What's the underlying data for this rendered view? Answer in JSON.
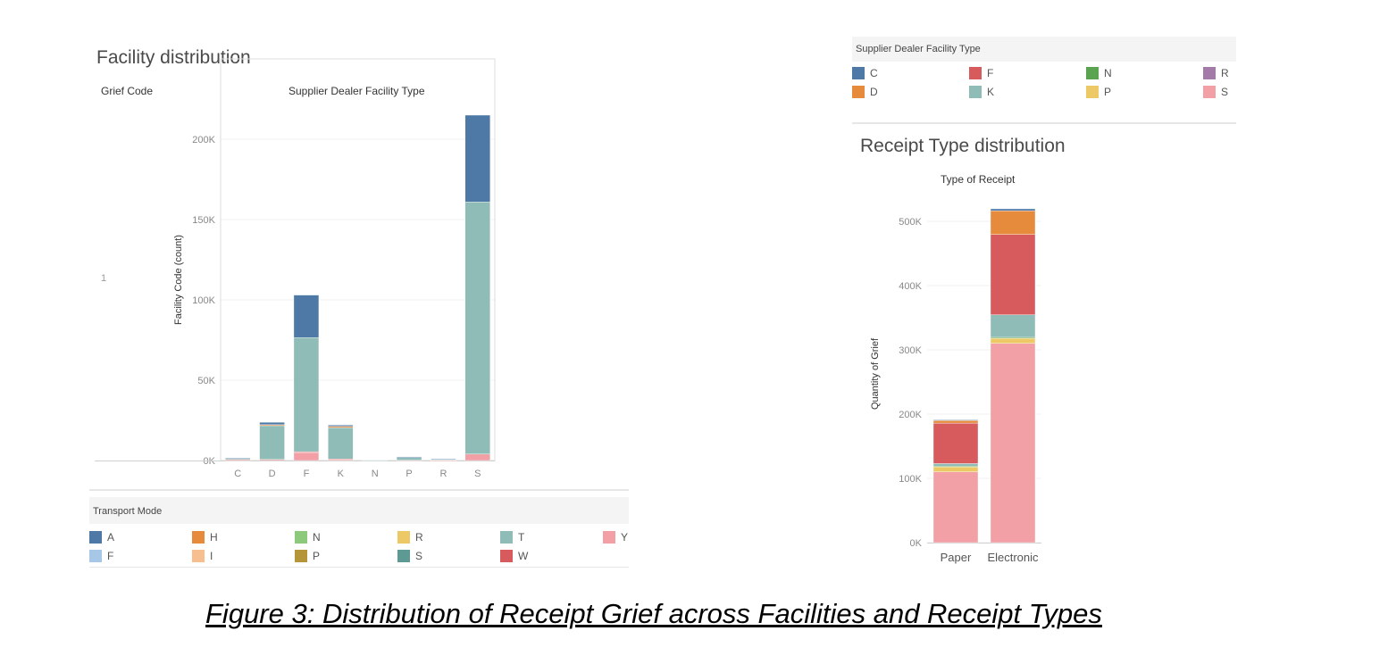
{
  "figure_caption": "Figure 3: Distribution of Receipt Grief across Facilities and Receipt Types",
  "left_panel": {
    "title": "Facility distribution",
    "row_header": "Grief Code",
    "row_value": "1",
    "column_header": "Supplier Dealer Facility Type"
  },
  "right_panel": {
    "title": "Receipt Type distribution",
    "column_header": "Type of Receipt"
  },
  "transport_legend": {
    "title": "Transport Mode",
    "items": [
      {
        "label": "A",
        "color": "#4e79a7"
      },
      {
        "label": "H",
        "color": "#e68a3c"
      },
      {
        "label": "N",
        "color": "#8cc97a"
      },
      {
        "label": "R",
        "color": "#ecc964"
      },
      {
        "label": "T",
        "color": "#8fbcb6"
      },
      {
        "label": "Y",
        "color": "#f2a0a6"
      },
      {
        "label": "F",
        "color": "#a6c8e6"
      },
      {
        "label": "I",
        "color": "#f7bf8f"
      },
      {
        "label": "P",
        "color": "#b5953a"
      },
      {
        "label": "S",
        "color": "#5e9a94"
      },
      {
        "label": "W",
        "color": "#d75a5c"
      }
    ]
  },
  "facility_legend": {
    "title": "Supplier Dealer Facility Type",
    "items": [
      {
        "label": "C",
        "color": "#4e79a7"
      },
      {
        "label": "F",
        "color": "#d75a5c"
      },
      {
        "label": "N",
        "color": "#5aa351"
      },
      {
        "label": "R",
        "color": "#a47aa8"
      },
      {
        "label": "D",
        "color": "#e68a3c"
      },
      {
        "label": "K",
        "color": "#8fbcb6"
      },
      {
        "label": "P",
        "color": "#ecc964"
      },
      {
        "label": "S",
        "color": "#f2a0a6"
      }
    ]
  },
  "chart_data": [
    {
      "type": "bar",
      "stacked": true,
      "title": "Facility distribution",
      "xlabel": "Supplier Dealer Facility Type",
      "ylabel": "Facility Code (count)",
      "categories": [
        "C",
        "D",
        "F",
        "K",
        "N",
        "P",
        "R",
        "S"
      ],
      "ylim": [
        0,
        225000
      ],
      "yticks": [
        0,
        50000,
        100000,
        150000,
        200000
      ],
      "ytick_labels": [
        "0K",
        "50K",
        "100K",
        "150K",
        "200K"
      ],
      "series": [
        {
          "name": "Y",
          "color": "#f2a0a6",
          "values": [
            300,
            500,
            5000,
            800,
            0,
            200,
            100,
            3500
          ]
        },
        {
          "name": "W",
          "color": "#d75a5c",
          "values": [
            100,
            200,
            500,
            200,
            0,
            0,
            0,
            500
          ]
        },
        {
          "name": "T",
          "color": "#8fbcb6",
          "values": [
            800,
            21000,
            71000,
            19500,
            200,
            1800,
            600,
            157000
          ]
        },
        {
          "name": "H",
          "color": "#e68a3c",
          "values": [
            200,
            600,
            0,
            800,
            0,
            0,
            0,
            0
          ]
        },
        {
          "name": "A",
          "color": "#4e79a7",
          "values": [
            100,
            1500,
            26500,
            800,
            0,
            300,
            200,
            54000
          ]
        }
      ]
    },
    {
      "type": "bar",
      "stacked": true,
      "title": "Receipt Type distribution",
      "xlabel": "Type of Receipt",
      "ylabel": "Quantity of Grief",
      "categories": [
        "Paper",
        "Electronic"
      ],
      "ylim": [
        0,
        525000
      ],
      "yticks": [
        0,
        100000,
        200000,
        300000,
        400000,
        500000
      ],
      "ytick_labels": [
        "0K",
        "100K",
        "200K",
        "300K",
        "400K",
        "500K"
      ],
      "series": [
        {
          "name": "S",
          "color": "#f2a0a6",
          "values": [
            110000,
            310000
          ]
        },
        {
          "name": "P",
          "color": "#ecc964",
          "values": [
            8000,
            8000
          ]
        },
        {
          "name": "N",
          "color": "#5aa351",
          "values": [
            1000,
            1500
          ]
        },
        {
          "name": "K",
          "color": "#8fbcb6",
          "values": [
            4000,
            35000
          ]
        },
        {
          "name": "F",
          "color": "#d75a5c",
          "values": [
            63000,
            125000
          ]
        },
        {
          "name": "D",
          "color": "#e68a3c",
          "values": [
            4000,
            37000
          ]
        },
        {
          "name": "C",
          "color": "#4e79a7",
          "values": [
            1000,
            3000
          ]
        }
      ]
    }
  ]
}
